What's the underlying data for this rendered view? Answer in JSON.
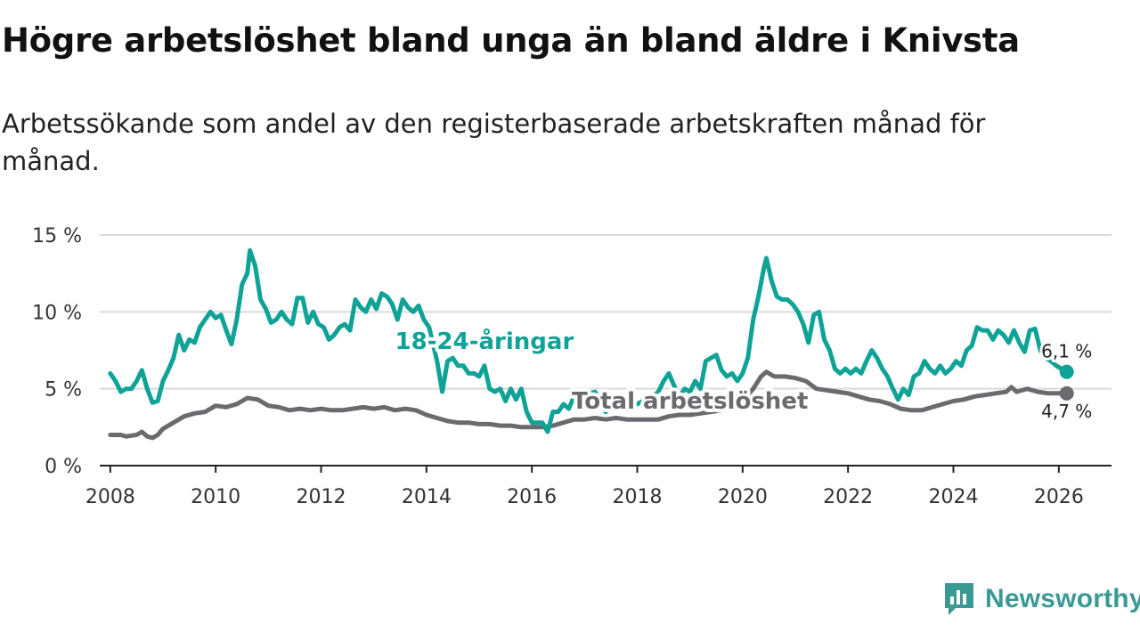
{
  "title": "Högre arbetslöshet bland unga än bland äldre i Knivsta",
  "subtitle": "Arbetssökande som andel av den registerbaserade arbetskraften månad för månad.",
  "brand": {
    "name": "Newsworthy",
    "icon": "newsworthy-logo-icon",
    "color": "#3a9a93"
  },
  "colors": {
    "youth": "#0fa397",
    "total": "#6b6a6f",
    "grid": "#d9d9d9",
    "axis": "#222222"
  },
  "chart_data": {
    "type": "line",
    "title": "Högre arbetslöshet bland unga än bland äldre i Knivsta",
    "xlabel": "",
    "ylabel": "",
    "xlim": [
      2007.8,
      2027.0
    ],
    "ylim": [
      0,
      15
    ],
    "grid": true,
    "y_ticks": [
      {
        "value": 0,
        "label": "0 %"
      },
      {
        "value": 5,
        "label": "5 %"
      },
      {
        "value": 10,
        "label": "10 %"
      },
      {
        "value": 15,
        "label": "15 %"
      }
    ],
    "x_ticks": [
      {
        "value": 2008,
        "label": "2008"
      },
      {
        "value": 2010,
        "label": "2010"
      },
      {
        "value": 2012,
        "label": "2012"
      },
      {
        "value": 2014,
        "label": "2014"
      },
      {
        "value": 2016,
        "label": "2016"
      },
      {
        "value": 2018,
        "label": "2018"
      },
      {
        "value": 2020,
        "label": "2020"
      },
      {
        "value": 2022,
        "label": "2022"
      },
      {
        "value": 2024,
        "label": "2024"
      },
      {
        "value": 2026,
        "label": "2026"
      }
    ],
    "series": [
      {
        "name": "18-24-åringar",
        "color": "#0fa397",
        "last_label": "6,1 %",
        "points": [
          [
            2008.0,
            6.0
          ],
          [
            2008.1,
            5.5
          ],
          [
            2008.2,
            4.8
          ],
          [
            2008.3,
            5.0
          ],
          [
            2008.4,
            5.0
          ],
          [
            2008.5,
            5.5
          ],
          [
            2008.6,
            6.2
          ],
          [
            2008.7,
            5.0
          ],
          [
            2008.8,
            4.1
          ],
          [
            2008.9,
            4.2
          ],
          [
            2009.0,
            5.5
          ],
          [
            2009.1,
            6.2
          ],
          [
            2009.2,
            7.0
          ],
          [
            2009.3,
            8.5
          ],
          [
            2009.4,
            7.5
          ],
          [
            2009.5,
            8.2
          ],
          [
            2009.6,
            8.0
          ],
          [
            2009.7,
            9.0
          ],
          [
            2009.8,
            9.5
          ],
          [
            2009.9,
            10.0
          ],
          [
            2010.0,
            9.6
          ],
          [
            2010.1,
            9.8
          ],
          [
            2010.2,
            8.8
          ],
          [
            2010.3,
            7.9
          ],
          [
            2010.4,
            9.5
          ],
          [
            2010.5,
            11.8
          ],
          [
            2010.6,
            12.5
          ],
          [
            2010.65,
            14.0
          ],
          [
            2010.75,
            13.0
          ],
          [
            2010.85,
            10.8
          ],
          [
            2010.95,
            10.2
          ],
          [
            2011.05,
            9.3
          ],
          [
            2011.15,
            9.5
          ],
          [
            2011.25,
            10.0
          ],
          [
            2011.35,
            9.5
          ],
          [
            2011.45,
            9.2
          ],
          [
            2011.55,
            10.9
          ],
          [
            2011.65,
            10.9
          ],
          [
            2011.75,
            9.3
          ],
          [
            2011.85,
            10.0
          ],
          [
            2011.95,
            9.2
          ],
          [
            2012.05,
            9.0
          ],
          [
            2012.15,
            8.2
          ],
          [
            2012.25,
            8.5
          ],
          [
            2012.35,
            9.0
          ],
          [
            2012.45,
            9.2
          ],
          [
            2012.55,
            8.8
          ],
          [
            2012.65,
            10.8
          ],
          [
            2012.75,
            10.3
          ],
          [
            2012.85,
            10.0
          ],
          [
            2012.95,
            10.8
          ],
          [
            2013.05,
            10.2
          ],
          [
            2013.15,
            11.2
          ],
          [
            2013.25,
            11.0
          ],
          [
            2013.35,
            10.5
          ],
          [
            2013.45,
            9.5
          ],
          [
            2013.55,
            10.8
          ],
          [
            2013.65,
            10.3
          ],
          [
            2013.75,
            10.0
          ],
          [
            2013.85,
            10.4
          ],
          [
            2013.95,
            9.5
          ],
          [
            2014.05,
            9.0
          ],
          [
            2014.2,
            6.8
          ],
          [
            2014.3,
            4.8
          ],
          [
            2014.4,
            6.8
          ],
          [
            2014.5,
            7.0
          ],
          [
            2014.6,
            6.5
          ],
          [
            2014.7,
            6.5
          ],
          [
            2014.8,
            6.0
          ],
          [
            2014.9,
            6.0
          ],
          [
            2015.0,
            5.8
          ],
          [
            2015.1,
            6.5
          ],
          [
            2015.2,
            5.0
          ],
          [
            2015.3,
            4.8
          ],
          [
            2015.4,
            5.0
          ],
          [
            2015.5,
            4.2
          ],
          [
            2015.6,
            5.0
          ],
          [
            2015.7,
            4.3
          ],
          [
            2015.8,
            5.0
          ],
          [
            2015.9,
            3.5
          ],
          [
            2016.0,
            2.8
          ],
          [
            2016.1,
            2.8
          ],
          [
            2016.2,
            2.8
          ],
          [
            2016.3,
            2.2
          ],
          [
            2016.4,
            3.5
          ],
          [
            2016.5,
            3.5
          ],
          [
            2016.6,
            4.0
          ],
          [
            2016.7,
            3.7
          ],
          [
            2016.8,
            4.5
          ],
          [
            2016.9,
            4.2
          ],
          [
            2017.0,
            4.5
          ],
          [
            2017.1,
            4.7
          ],
          [
            2017.2,
            4.8
          ],
          [
            2017.3,
            4.2
          ],
          [
            2017.4,
            3.5
          ],
          [
            2017.5,
            3.8
          ],
          [
            2017.6,
            4.0
          ],
          [
            2017.7,
            3.8
          ],
          [
            2017.8,
            3.8
          ],
          [
            2017.9,
            4.0
          ],
          [
            2018.0,
            4.0
          ],
          [
            2018.1,
            4.2
          ],
          [
            2018.2,
            4.0
          ],
          [
            2018.3,
            4.5
          ],
          [
            2018.4,
            4.8
          ],
          [
            2018.5,
            5.5
          ],
          [
            2018.6,
            6.0
          ],
          [
            2018.7,
            5.2
          ],
          [
            2018.8,
            4.5
          ],
          [
            2018.9,
            5.0
          ],
          [
            2019.0,
            4.8
          ],
          [
            2019.1,
            5.5
          ],
          [
            2019.2,
            5.0
          ],
          [
            2019.3,
            6.8
          ],
          [
            2019.4,
            7.0
          ],
          [
            2019.5,
            7.2
          ],
          [
            2019.6,
            6.2
          ],
          [
            2019.7,
            5.8
          ],
          [
            2019.8,
            6.0
          ],
          [
            2019.9,
            5.5
          ],
          [
            2020.0,
            6.0
          ],
          [
            2020.1,
            7.0
          ],
          [
            2020.2,
            9.5
          ],
          [
            2020.3,
            11.0
          ],
          [
            2020.4,
            12.8
          ],
          [
            2020.45,
            13.5
          ],
          [
            2020.55,
            12.0
          ],
          [
            2020.65,
            11.0
          ],
          [
            2020.75,
            10.8
          ],
          [
            2020.85,
            10.8
          ],
          [
            2020.95,
            10.5
          ],
          [
            2021.05,
            10.0
          ],
          [
            2021.15,
            9.2
          ],
          [
            2021.25,
            8.0
          ],
          [
            2021.35,
            9.8
          ],
          [
            2021.45,
            10.0
          ],
          [
            2021.55,
            8.2
          ],
          [
            2021.65,
            7.5
          ],
          [
            2021.75,
            6.3
          ],
          [
            2021.85,
            6.0
          ],
          [
            2021.95,
            6.3
          ],
          [
            2022.05,
            6.0
          ],
          [
            2022.15,
            6.3
          ],
          [
            2022.25,
            6.0
          ],
          [
            2022.35,
            6.8
          ],
          [
            2022.45,
            7.5
          ],
          [
            2022.55,
            7.0
          ],
          [
            2022.65,
            6.3
          ],
          [
            2022.75,
            5.8
          ],
          [
            2022.85,
            5.0
          ],
          [
            2022.95,
            4.3
          ],
          [
            2023.05,
            5.0
          ],
          [
            2023.15,
            4.6
          ],
          [
            2023.25,
            5.8
          ],
          [
            2023.35,
            6.0
          ],
          [
            2023.45,
            6.8
          ],
          [
            2023.55,
            6.3
          ],
          [
            2023.65,
            6.0
          ],
          [
            2023.75,
            6.5
          ],
          [
            2023.85,
            6.0
          ],
          [
            2023.95,
            6.3
          ],
          [
            2024.05,
            6.8
          ],
          [
            2024.15,
            6.5
          ],
          [
            2024.25,
            7.5
          ],
          [
            2024.35,
            7.8
          ],
          [
            2024.45,
            9.0
          ],
          [
            2024.55,
            8.8
          ],
          [
            2024.65,
            8.8
          ],
          [
            2024.75,
            8.2
          ],
          [
            2024.85,
            8.8
          ],
          [
            2024.95,
            8.5
          ],
          [
            2025.05,
            8.0
          ],
          [
            2025.15,
            8.8
          ],
          [
            2025.25,
            8.0
          ],
          [
            2025.35,
            7.4
          ],
          [
            2025.45,
            8.8
          ],
          [
            2025.55,
            8.9
          ],
          [
            2025.65,
            7.5
          ],
          [
            2025.75,
            7.0
          ],
          [
            2025.85,
            6.8
          ],
          [
            2025.95,
            6.5
          ],
          [
            2026.05,
            6.3
          ],
          [
            2026.15,
            6.1
          ]
        ]
      },
      {
        "name": "Total arbetslöshet",
        "color": "#6b6a6f",
        "last_label": "4,7 %",
        "points": [
          [
            2008.0,
            2.0
          ],
          [
            2008.2,
            2.0
          ],
          [
            2008.3,
            1.9
          ],
          [
            2008.5,
            2.0
          ],
          [
            2008.6,
            2.2
          ],
          [
            2008.7,
            1.9
          ],
          [
            2008.8,
            1.8
          ],
          [
            2008.9,
            2.0
          ],
          [
            2009.0,
            2.4
          ],
          [
            2009.2,
            2.8
          ],
          [
            2009.4,
            3.2
          ],
          [
            2009.6,
            3.4
          ],
          [
            2009.8,
            3.5
          ],
          [
            2010.0,
            3.9
          ],
          [
            2010.2,
            3.8
          ],
          [
            2010.4,
            4.0
          ],
          [
            2010.5,
            4.2
          ],
          [
            2010.6,
            4.4
          ],
          [
            2010.8,
            4.3
          ],
          [
            2011.0,
            3.9
          ],
          [
            2011.2,
            3.8
          ],
          [
            2011.4,
            3.6
          ],
          [
            2011.6,
            3.7
          ],
          [
            2011.8,
            3.6
          ],
          [
            2012.0,
            3.7
          ],
          [
            2012.2,
            3.6
          ],
          [
            2012.4,
            3.6
          ],
          [
            2012.6,
            3.7
          ],
          [
            2012.8,
            3.8
          ],
          [
            2013.0,
            3.7
          ],
          [
            2013.2,
            3.8
          ],
          [
            2013.4,
            3.6
          ],
          [
            2013.6,
            3.7
          ],
          [
            2013.8,
            3.6
          ],
          [
            2014.0,
            3.3
          ],
          [
            2014.2,
            3.1
          ],
          [
            2014.4,
            2.9
          ],
          [
            2014.6,
            2.8
          ],
          [
            2014.8,
            2.8
          ],
          [
            2015.0,
            2.7
          ],
          [
            2015.2,
            2.7
          ],
          [
            2015.4,
            2.6
          ],
          [
            2015.6,
            2.6
          ],
          [
            2015.8,
            2.5
          ],
          [
            2016.0,
            2.5
          ],
          [
            2016.2,
            2.5
          ],
          [
            2016.4,
            2.6
          ],
          [
            2016.6,
            2.8
          ],
          [
            2016.8,
            3.0
          ],
          [
            2017.0,
            3.0
          ],
          [
            2017.2,
            3.1
          ],
          [
            2017.4,
            3.0
          ],
          [
            2017.6,
            3.1
          ],
          [
            2017.8,
            3.0
          ],
          [
            2018.0,
            3.0
          ],
          [
            2018.2,
            3.0
          ],
          [
            2018.4,
            3.0
          ],
          [
            2018.6,
            3.2
          ],
          [
            2018.8,
            3.3
          ],
          [
            2019.0,
            3.3
          ],
          [
            2019.2,
            3.4
          ],
          [
            2019.4,
            3.5
          ],
          [
            2019.6,
            3.6
          ],
          [
            2019.8,
            3.8
          ],
          [
            2020.0,
            4.2
          ],
          [
            2020.2,
            5.0
          ],
          [
            2020.35,
            5.8
          ],
          [
            2020.45,
            6.1
          ],
          [
            2020.6,
            5.8
          ],
          [
            2020.8,
            5.8
          ],
          [
            2021.0,
            5.7
          ],
          [
            2021.2,
            5.5
          ],
          [
            2021.4,
            5.0
          ],
          [
            2021.6,
            4.9
          ],
          [
            2021.8,
            4.8
          ],
          [
            2022.0,
            4.7
          ],
          [
            2022.2,
            4.5
          ],
          [
            2022.4,
            4.3
          ],
          [
            2022.6,
            4.2
          ],
          [
            2022.8,
            4.0
          ],
          [
            2023.0,
            3.7
          ],
          [
            2023.2,
            3.6
          ],
          [
            2023.4,
            3.6
          ],
          [
            2023.6,
            3.8
          ],
          [
            2023.8,
            4.0
          ],
          [
            2024.0,
            4.2
          ],
          [
            2024.2,
            4.3
          ],
          [
            2024.4,
            4.5
          ],
          [
            2024.6,
            4.6
          ],
          [
            2024.8,
            4.7
          ],
          [
            2025.0,
            4.8
          ],
          [
            2025.1,
            5.1
          ],
          [
            2025.2,
            4.8
          ],
          [
            2025.4,
            5.0
          ],
          [
            2025.6,
            4.8
          ],
          [
            2025.8,
            4.7
          ],
          [
            2026.0,
            4.7
          ],
          [
            2026.15,
            4.7
          ]
        ]
      }
    ],
    "annotations": [
      {
        "text": "18-24-åringar",
        "series": "18-24-åringar",
        "x": 2015.1,
        "y": 7.6
      },
      {
        "text": "Total arbetslöshet",
        "series": "Total arbetslöshet",
        "x": 2019.0,
        "y": 3.7
      }
    ]
  }
}
